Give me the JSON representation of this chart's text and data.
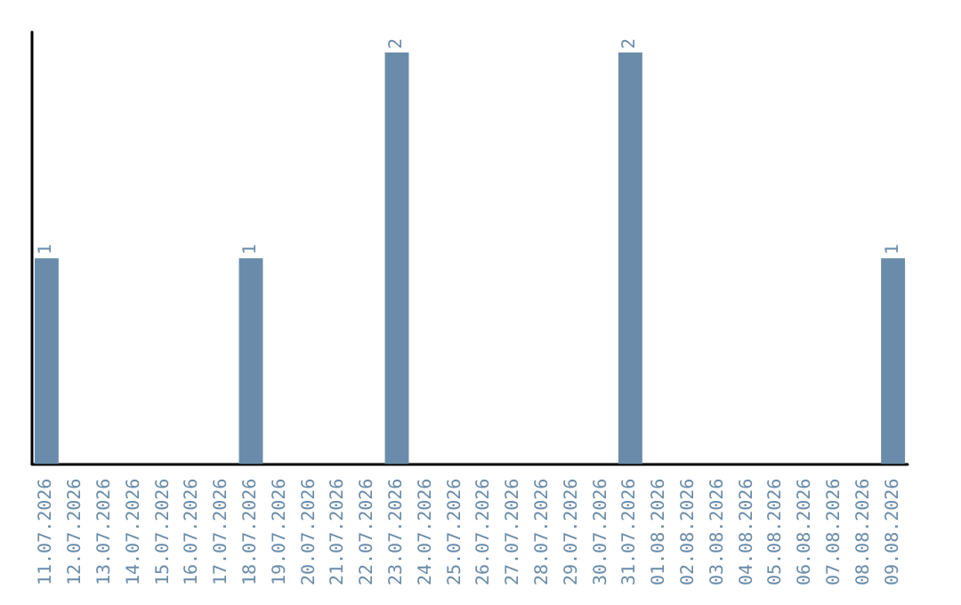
{
  "chart_data": {
    "type": "bar",
    "categories": [
      "11.07.2026",
      "12.07.2026",
      "13.07.2026",
      "14.07.2026",
      "15.07.2026",
      "16.07.2026",
      "17.07.2026",
      "18.07.2026",
      "19.07.2026",
      "20.07.2026",
      "21.07.2026",
      "22.07.2026",
      "23.07.2026",
      "24.07.2026",
      "25.07.2026",
      "26.07.2026",
      "27.07.2026",
      "28.07.2026",
      "29.07.2026",
      "30.07.2026",
      "31.07.2026",
      "01.08.2026",
      "02.08.2026",
      "03.08.2026",
      "04.08.2026",
      "05.08.2026",
      "06.08.2026",
      "07.08.2026",
      "08.08.2026",
      "09.08.2026"
    ],
    "values": [
      1,
      0,
      0,
      0,
      0,
      0,
      0,
      1,
      0,
      0,
      0,
      0,
      2,
      0,
      0,
      0,
      0,
      0,
      0,
      0,
      2,
      0,
      0,
      0,
      0,
      0,
      0,
      0,
      0,
      1
    ],
    "value_labels": [
      "1",
      null,
      null,
      null,
      null,
      null,
      null,
      "1",
      null,
      null,
      null,
      null,
      "2",
      null,
      null,
      null,
      null,
      null,
      null,
      null,
      "2",
      null,
      null,
      null,
      null,
      null,
      null,
      null,
      null,
      "1"
    ],
    "color": "#6a8caa"
  }
}
